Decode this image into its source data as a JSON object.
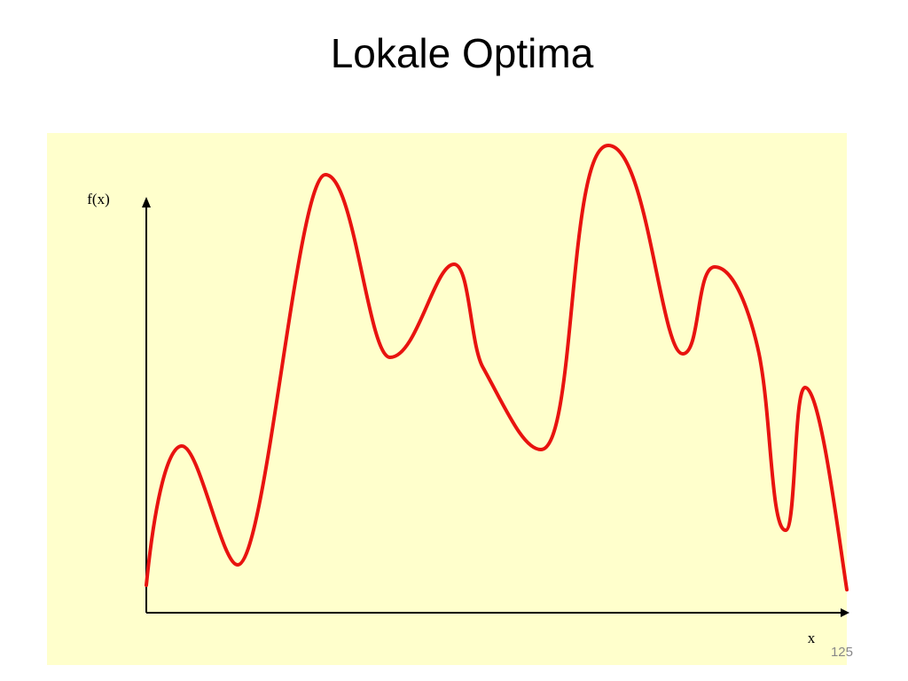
{
  "title": "Lokale Optima",
  "diagram": {
    "y_label": "f(x)",
    "x_label": "x"
  },
  "page_number": 125
}
